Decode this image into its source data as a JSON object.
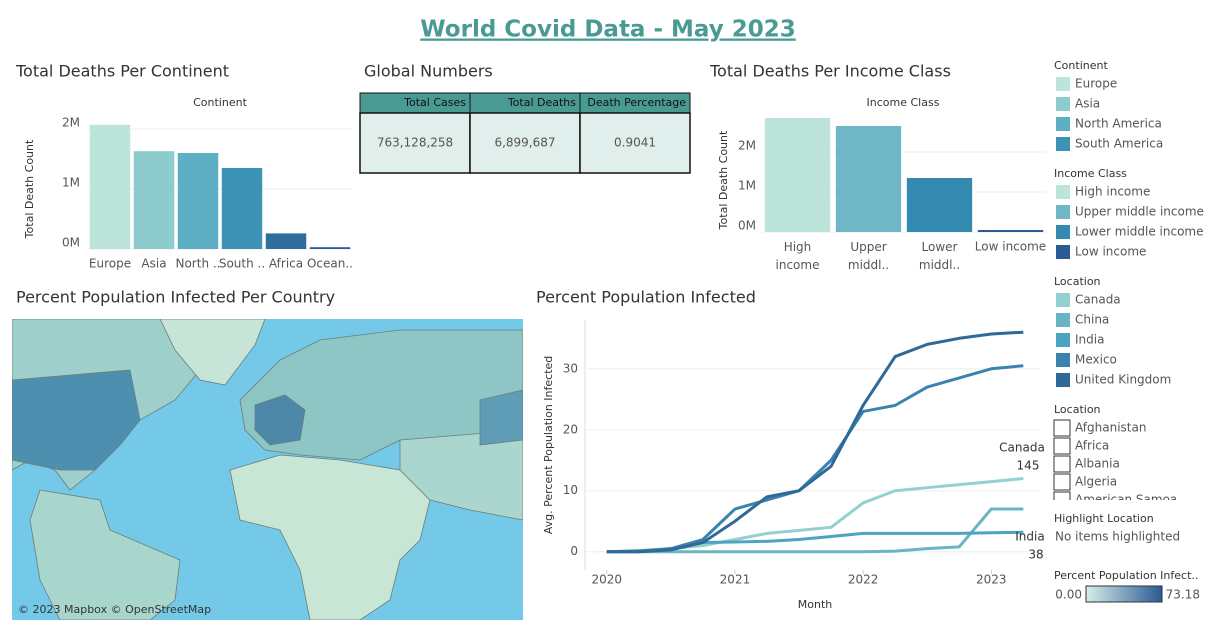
{
  "title": "World Covid Data - May 2023",
  "chart_data": [
    {
      "type": "bar",
      "title": "Total Deaths Per Continent",
      "x_label": "Continent",
      "y_label": "Total Death Count",
      "categories": [
        "Europe",
        "Asia",
        "North ..",
        "South ..",
        "Africa",
        "Ocean.."
      ],
      "values": [
        2070000,
        1630000,
        1600000,
        1350000,
        260000,
        30000
      ],
      "colors": [
        "#bde4da",
        "#8dcbcc",
        "#5eaec4",
        "#3c93b5",
        "#2f6e9c",
        "#2a5b95"
      ],
      "ylim": [
        0,
        2200000
      ],
      "yticks": [
        {
          "value": 0,
          "label": "0M"
        },
        {
          "value": 1000000,
          "label": "1M"
        },
        {
          "value": 2000000,
          "label": "2M"
        }
      ]
    },
    {
      "type": "bar",
      "title": "Total Deaths Per Income Class",
      "x_label": "Income Class",
      "y_label": "Total Death Count",
      "categories": [
        "High income",
        "Upper middl..",
        "Lower middl..",
        "Low income"
      ],
      "values": [
        2850000,
        2650000,
        1350000,
        50000
      ],
      "colors": [
        "#bde4da",
        "#6fb7c6",
        "#3389b0",
        "#2a5b95"
      ],
      "ylim": [
        0,
        2900000
      ],
      "yticks": [
        {
          "value": 0,
          "label": "0M"
        },
        {
          "value": 1000000,
          "label": "1M"
        },
        {
          "value": 2000000,
          "label": "2M"
        }
      ]
    },
    {
      "type": "line",
      "title": "Percent Population Infected",
      "x_label": "Month",
      "y_label": "Avg. Percent Population Infected",
      "x": [
        2020,
        2020.25,
        2020.5,
        2020.75,
        2021,
        2021.25,
        2021.5,
        2021.75,
        2022,
        2022.25,
        2022.5,
        2022.75,
        2023,
        2023.25
      ],
      "series": [
        {
          "name": "Canada",
          "color": "#94d0cf",
          "values": [
            0,
            0.2,
            0.5,
            1,
            2,
            3,
            3.5,
            4,
            8,
            10,
            10.5,
            11,
            11.5,
            12
          ]
        },
        {
          "name": "China",
          "color": "#6ab5c5",
          "values": [
            0,
            0,
            0,
            0,
            0,
            0,
            0,
            0,
            0,
            0.1,
            0.5,
            0.8,
            7,
            7
          ]
        },
        {
          "name": "India",
          "color": "#4da4c0",
          "values": [
            0,
            0,
            0.5,
            1.5,
            1.6,
            1.7,
            2,
            2.5,
            3,
            3,
            3,
            3,
            3.1,
            3.2
          ]
        },
        {
          "name": "Mexico",
          "color": "#3a83ae",
          "values": [
            0,
            0.1,
            0.5,
            2,
            7,
            8.5,
            10,
            15,
            23,
            24,
            27,
            28.5,
            30,
            30.5
          ]
        },
        {
          "name": "United Kingdom",
          "color": "#2f6998",
          "values": [
            0,
            0,
            0.3,
            1.5,
            5,
            9,
            10,
            14,
            24,
            32,
            34,
            35,
            35.7,
            36
          ]
        }
      ],
      "annotations": [
        {
          "label": "Canada",
          "value": 145
        },
        {
          "label": "India",
          "value": 38
        }
      ],
      "xlim": [
        2019.83,
        2023.38
      ],
      "xticks": [
        2020,
        2021,
        2022,
        2023
      ],
      "ylim": [
        -3,
        38
      ],
      "yticks": [
        0,
        10,
        20,
        30
      ],
      "grid": true
    }
  ],
  "global_numbers": {
    "title": "Global Numbers",
    "headers": [
      "Total Cases",
      "Total Deaths",
      "Death Percentage"
    ],
    "rows": [
      [
        "763,128,258",
        "6,899,687",
        "0.9041"
      ]
    ]
  },
  "map": {
    "title": "Percent Population Infected Per Country",
    "attribution": "© 2023 Mapbox © OpenStreetMap",
    "legend": {
      "title": "Percent Population Infect..",
      "min": {
        "value": 0,
        "label": "0.00"
      },
      "max": 73.18
    }
  },
  "legends": [
    {
      "title": "Continent",
      "items": [
        {
          "label": "Europe",
          "color": "#bde4da"
        },
        {
          "label": "Asia",
          "color": "#8dcbcc"
        },
        {
          "label": "North America",
          "color": "#5eaec4"
        },
        {
          "label": "South America",
          "color": "#3c93b5"
        }
      ]
    },
    {
      "title": "Income Class",
      "items": [
        {
          "label": "High income",
          "color": "#bde4da"
        },
        {
          "label": "Upper middle income",
          "color": "#6fb7c6"
        },
        {
          "label": "Lower middle income",
          "color": "#3389b0"
        },
        {
          "label": "Low income",
          "color": "#2a5b95"
        }
      ]
    },
    {
      "title": "Location",
      "items": [
        {
          "label": "Canada",
          "color": "#94d0cf"
        },
        {
          "label": "China",
          "color": "#6ab5c5"
        },
        {
          "label": "India",
          "color": "#4da4c0"
        },
        {
          "label": "Mexico",
          "color": "#3a83ae"
        },
        {
          "label": "United Kingdom",
          "color": "#2f6998"
        }
      ]
    }
  ],
  "location_filter": {
    "title": "Location",
    "items": [
      "Afghanistan",
      "Africa",
      "Albania",
      "Algeria",
      "American Samoa"
    ]
  },
  "highlight": {
    "title": "Highlight Location",
    "text": "No items highlighted"
  }
}
